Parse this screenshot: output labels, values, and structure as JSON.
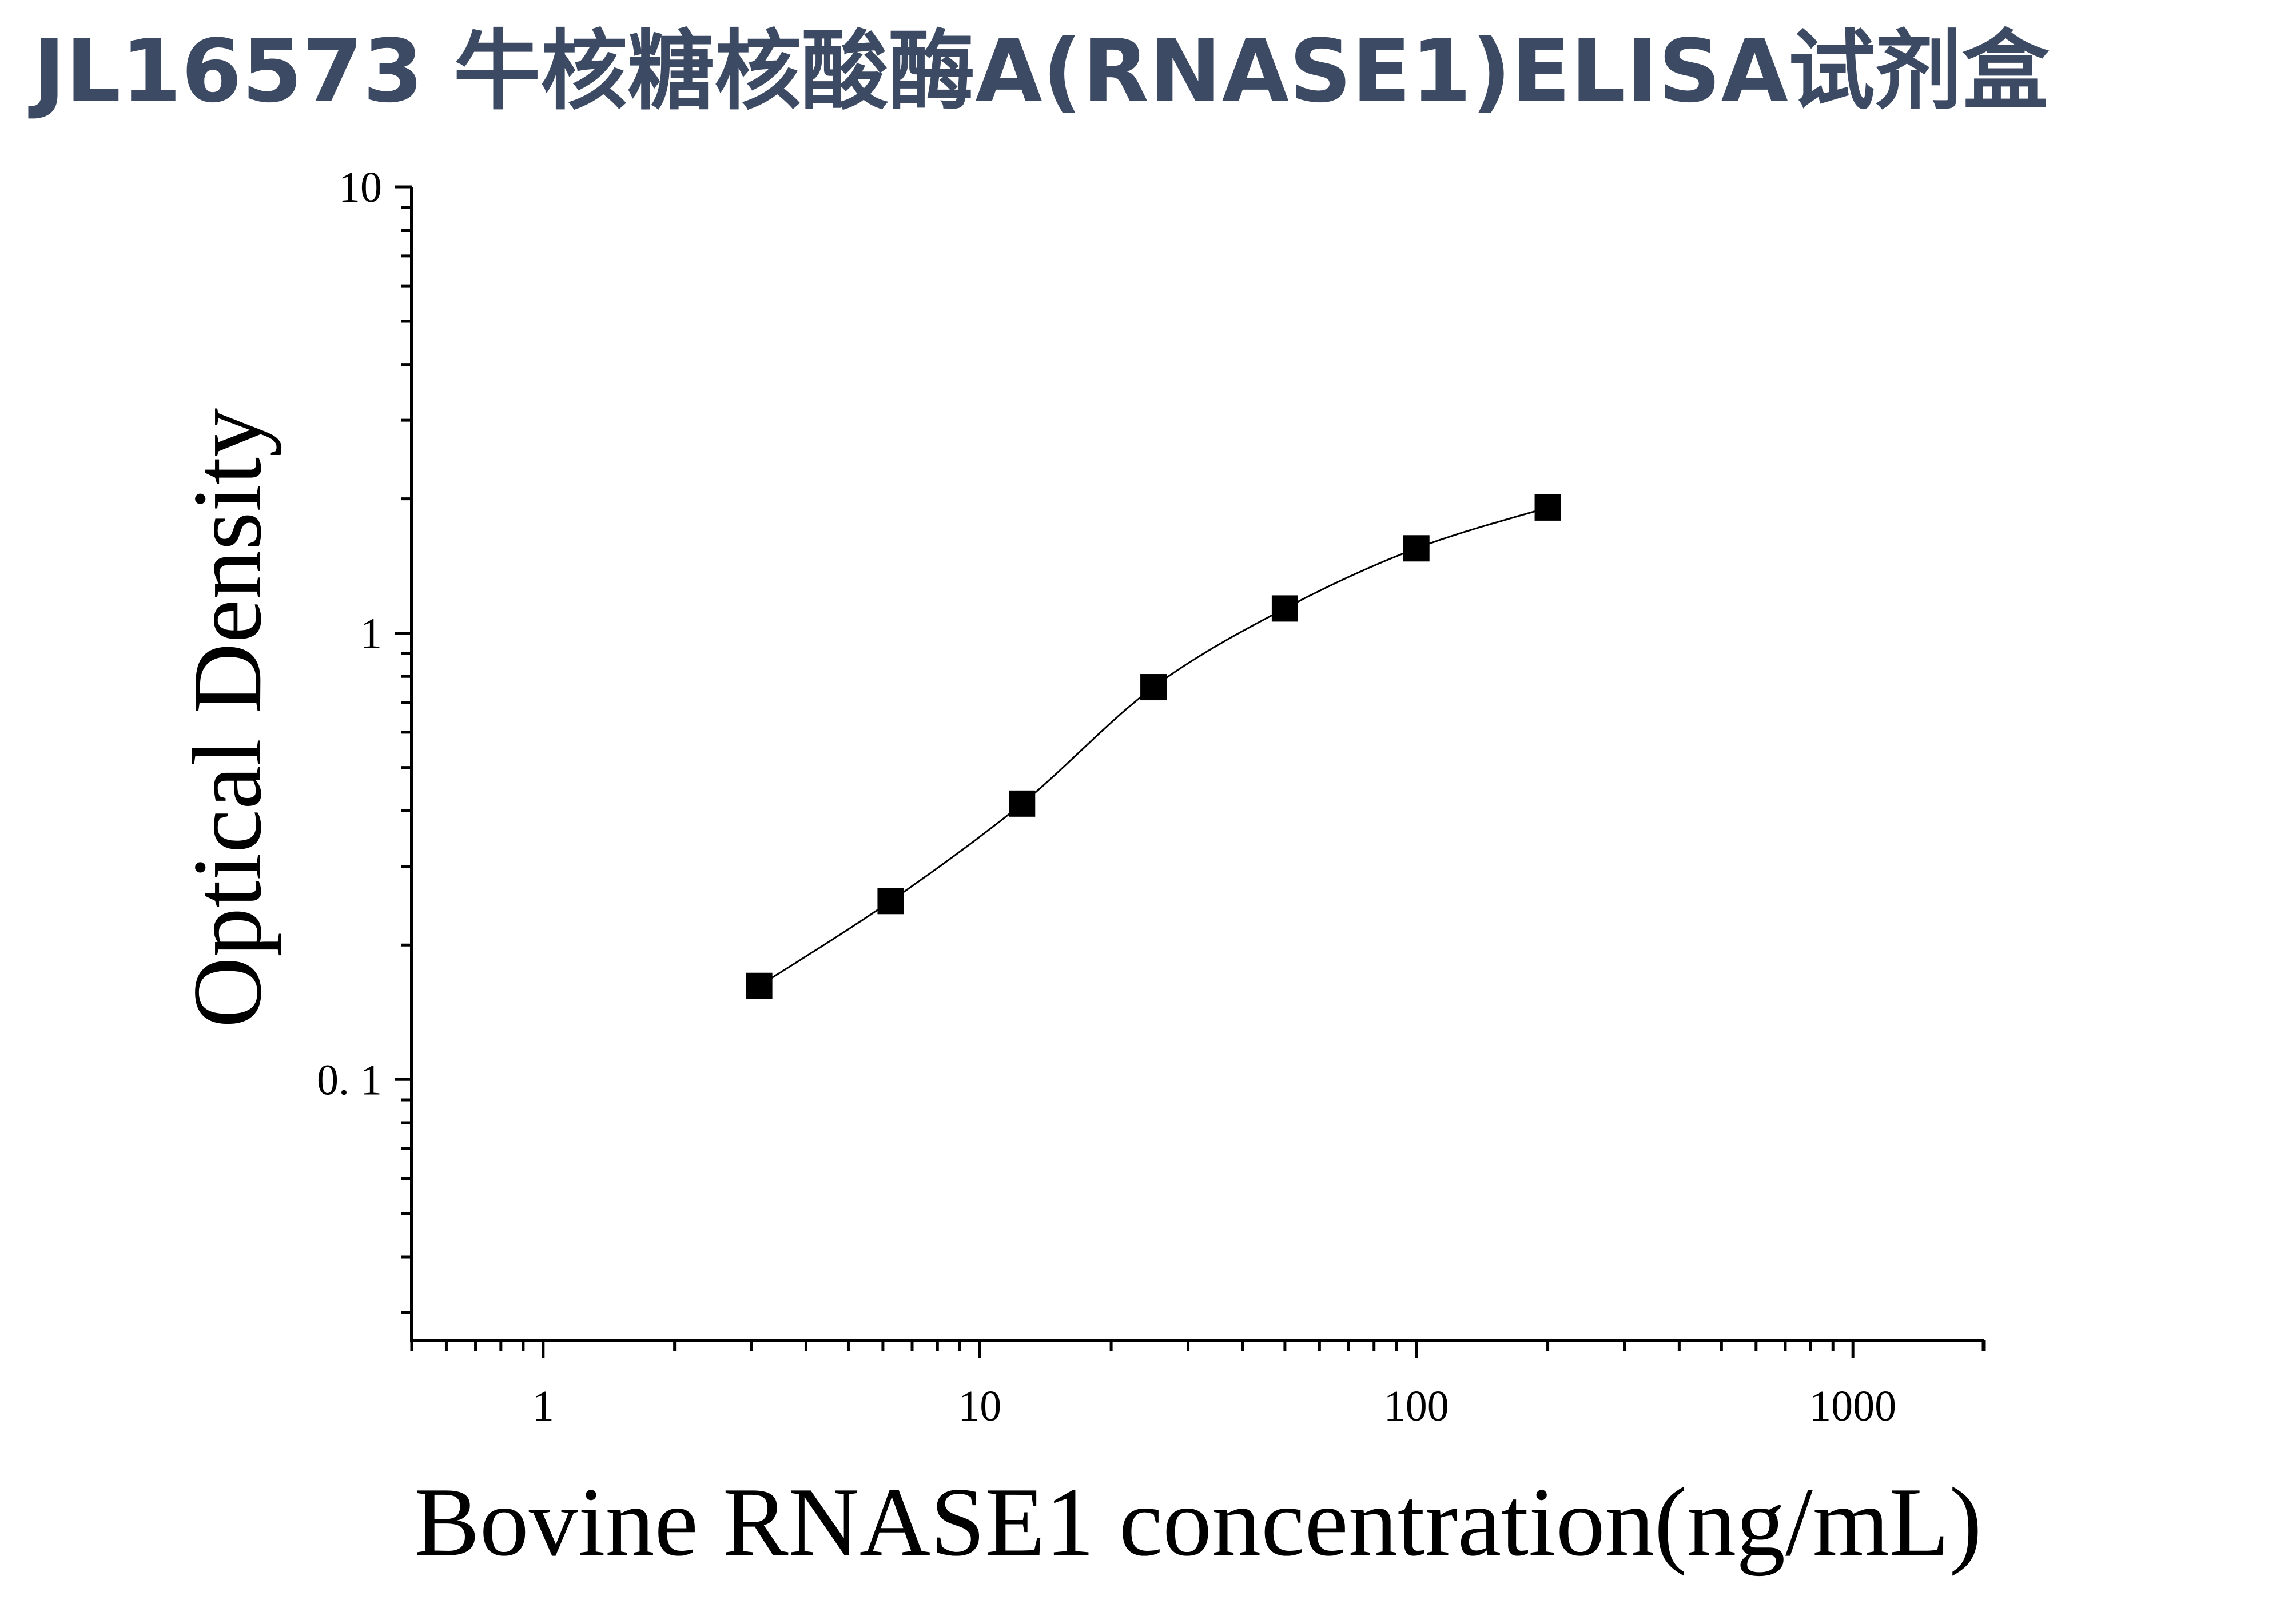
{
  "page_title": "JL16573 牛核糖核酸酶A(RNASE1)ELISA试剂盒",
  "chart_data": {
    "type": "scatter",
    "xlabel": "Bovine RNASE1 concentration(ng/mL)",
    "ylabel": "Optical Density",
    "x_scale": "log",
    "y_scale": "log",
    "xlim": [
      0.5,
      2000
    ],
    "ylim": [
      0.026,
      10
    ],
    "x_ticks": [
      {
        "value": 1,
        "label": "1"
      },
      {
        "value": 10,
        "label": "10"
      },
      {
        "value": 100,
        "label": "100"
      },
      {
        "value": 1000,
        "label": "1000"
      }
    ],
    "y_ticks": [
      {
        "value": 10,
        "label": "10"
      },
      {
        "value": 1,
        "label": "1"
      },
      {
        "value": 0.1,
        "label": "0. 1"
      }
    ],
    "grid": false,
    "legend": "none",
    "series": [
      {
        "x": [
          3.125,
          6.25,
          12.5,
          25,
          50,
          100,
          200
        ],
        "y": [
          0.162,
          0.251,
          0.415,
          0.757,
          1.136,
          1.549,
          1.912
        ],
        "marker": "square",
        "color": "#000000",
        "fit_curve": true
      }
    ]
  }
}
